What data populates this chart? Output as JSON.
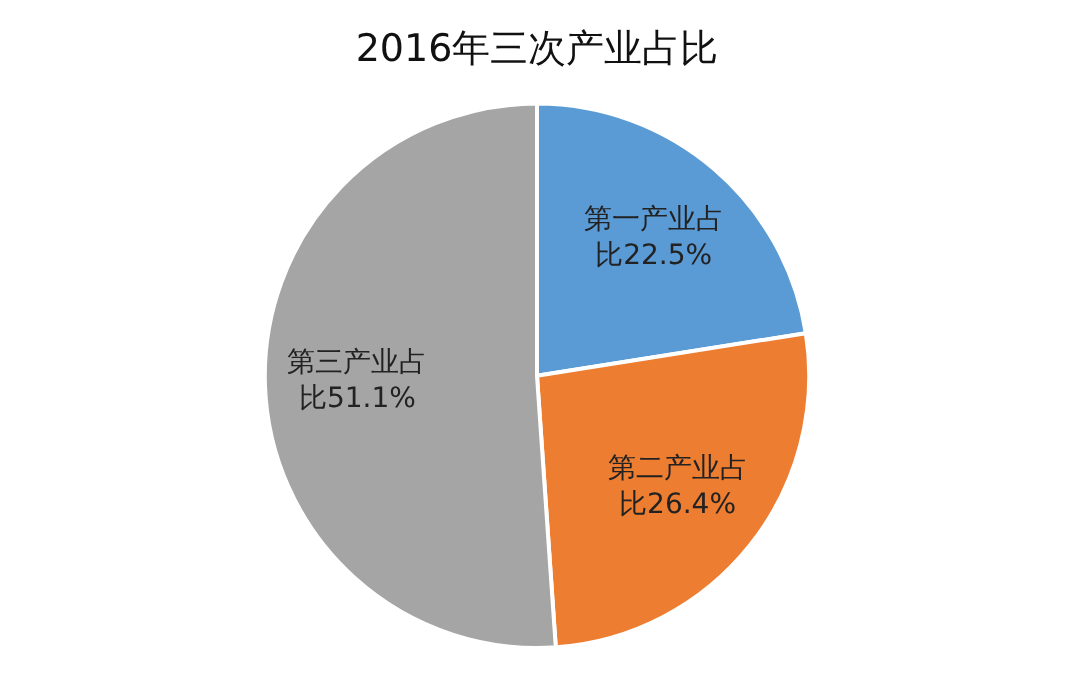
{
  "chart_data": {
    "type": "pie",
    "title": "2016年三次产业占比",
    "categories": [
      "第一产业占比22.5%",
      "第二产业占比26.4%",
      "第三产业占比51.1%"
    ],
    "values": [
      22.5,
      26.4,
      51.1
    ],
    "colors": [
      "#5b9bd5",
      "#ed7d31",
      "#a5a5a5"
    ],
    "legend": false
  }
}
